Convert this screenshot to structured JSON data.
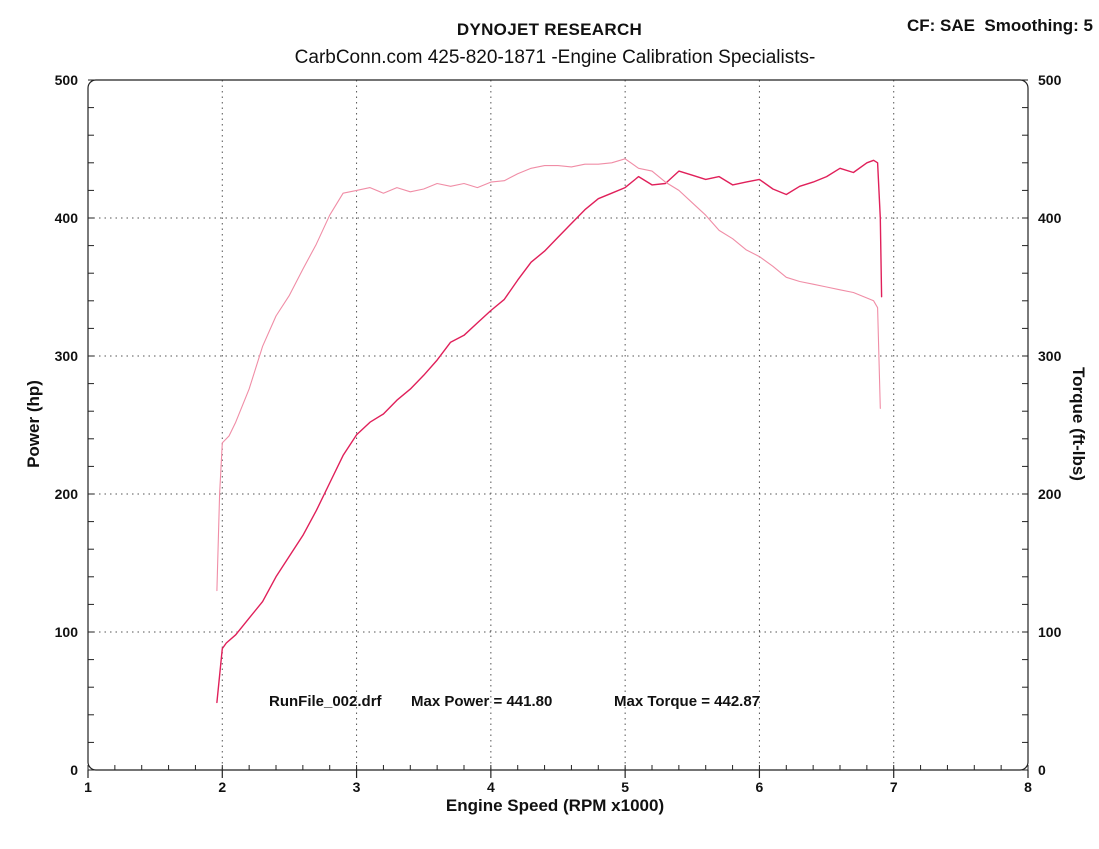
{
  "header": {
    "title": "DYNOJET RESEARCH",
    "subtitle": "CarbConn.com   425-820-1871  -Engine Calibration Specialists-",
    "cf_smoothing": "CF: SAE  Smoothing: 5"
  },
  "chart_data": {
    "type": "line",
    "xlabel": "Engine Speed (RPM x1000)",
    "ylabel": "Power (hp)",
    "y2label": "Torque (ft-lbs)",
    "xlim": [
      1,
      8
    ],
    "ylim": [
      0,
      500
    ],
    "y2lim": [
      0,
      500
    ],
    "x_ticks": [
      "1",
      "2",
      "3",
      "4",
      "5",
      "6",
      "7",
      "8"
    ],
    "y_ticks": [
      "0",
      "100",
      "200",
      "300",
      "400",
      "500"
    ],
    "y2_ticks": [
      "0",
      "100",
      "200",
      "300",
      "400",
      "500"
    ],
    "grid": "dotted",
    "annotation_run": "RunFile_002.drf",
    "annotation_power": "Max Power = 441.80",
    "annotation_torque": "Max Torque = 442.87",
    "series": [
      {
        "role": "power",
        "axis": "left",
        "color": "#e0205a",
        "x": [
          1.96,
          2.0,
          2.03,
          2.1,
          2.2,
          2.3,
          2.4,
          2.5,
          2.6,
          2.7,
          2.8,
          2.9,
          3.0,
          3.1,
          3.2,
          3.3,
          3.4,
          3.5,
          3.6,
          3.7,
          3.8,
          3.9,
          4.0,
          4.1,
          4.2,
          4.3,
          4.4,
          4.5,
          4.6,
          4.7,
          4.8,
          4.9,
          5.0,
          5.1,
          5.2,
          5.3,
          5.4,
          5.5,
          5.6,
          5.7,
          5.8,
          5.9,
          6.0,
          6.1,
          6.2,
          6.3,
          6.4,
          6.5,
          6.6,
          6.7,
          6.8,
          6.85,
          6.88,
          6.9,
          6.91
        ],
        "y": [
          49,
          88,
          92,
          98,
          110,
          122,
          140,
          155,
          170,
          188,
          208,
          228,
          243,
          252,
          258,
          268,
          276,
          286,
          297,
          310,
          315,
          324,
          333,
          341,
          355,
          368,
          376,
          386,
          396,
          406,
          414,
          418,
          422,
          430,
          424,
          425,
          434,
          431,
          428,
          430,
          424,
          426,
          428,
          421,
          417,
          423,
          426,
          430,
          436,
          433,
          440,
          441.8,
          440,
          400,
          343
        ]
      },
      {
        "role": "torque",
        "axis": "right",
        "color": "#f08da6",
        "x": [
          1.96,
          1.98,
          2.0,
          2.05,
          2.1,
          2.2,
          2.3,
          2.4,
          2.5,
          2.6,
          2.7,
          2.8,
          2.9,
          3.0,
          3.1,
          3.2,
          3.3,
          3.4,
          3.5,
          3.6,
          3.7,
          3.8,
          3.9,
          4.0,
          4.1,
          4.2,
          4.3,
          4.4,
          4.5,
          4.6,
          4.7,
          4.8,
          4.9,
          5.0,
          5.1,
          5.2,
          5.3,
          5.4,
          5.5,
          5.6,
          5.7,
          5.8,
          5.9,
          6.0,
          6.1,
          6.2,
          6.3,
          6.4,
          6.5,
          6.6,
          6.7,
          6.8,
          6.85,
          6.88,
          6.9
        ],
        "y": [
          130,
          200,
          237,
          242,
          252,
          276,
          307,
          329,
          344,
          363,
          381,
          402,
          418,
          420,
          422,
          418,
          422,
          419,
          421,
          425,
          423,
          425,
          422,
          426,
          427,
          432,
          436,
          438,
          438,
          437,
          439,
          439,
          440,
          442.87,
          436,
          434,
          426,
          420,
          411,
          402,
          391,
          385,
          377,
          372,
          365,
          357,
          354,
          352,
          350,
          348,
          346,
          342,
          340,
          335,
          262
        ]
      }
    ]
  }
}
